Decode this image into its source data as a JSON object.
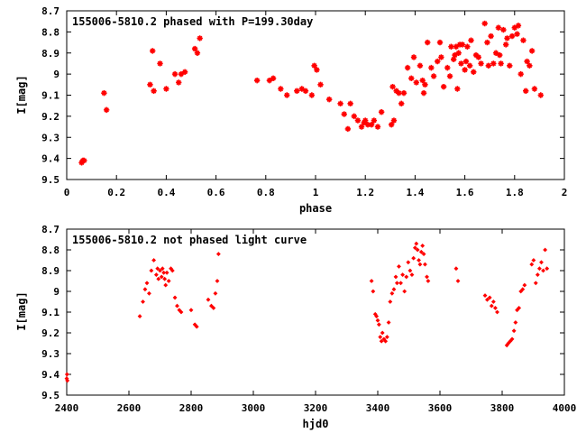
{
  "chart_data": [
    {
      "type": "scatter",
      "title": "155006-5810.2 phased with P=199.30day",
      "xlabel": "phase",
      "ylabel": "I[mag]",
      "xlim": [
        0,
        2
      ],
      "ylim": [
        9.5,
        8.7
      ],
      "y_inverted": true,
      "x_ticks": [
        "0",
        "0.2",
        "0.4",
        "0.6",
        "0.8",
        "1",
        "1.2",
        "1.4",
        "1.6",
        "1.8",
        "2"
      ],
      "y_ticks": [
        "8.7",
        "8.8",
        "8.9",
        "9",
        "9.1",
        "9.2",
        "9.3",
        "9.4",
        "9.5"
      ],
      "grid": false,
      "marker_color": "#ff0000",
      "series": [
        {
          "x": [
            0.06,
            0.065,
            0.07,
            0.15,
            0.16,
            0.335,
            0.345,
            0.35,
            0.375,
            0.4,
            0.435,
            0.45,
            0.46,
            0.475,
            0.515,
            0.525,
            0.535,
            0.765,
            0.815,
            0.83,
            0.86,
            0.885,
            0.925,
            0.945,
            0.96,
            0.985,
            0.995,
            1.005,
            1.02,
            1.055,
            1.1,
            1.115,
            1.13,
            1.14,
            1.155,
            1.17,
            1.185,
            1.195,
            1.2,
            1.21,
            1.225,
            1.235,
            1.25,
            1.265,
            1.305,
            1.31,
            1.315,
            1.325,
            1.335,
            1.345,
            1.355,
            1.37,
            1.385,
            1.395,
            1.405,
            1.42,
            1.43,
            1.435,
            1.44,
            1.45,
            1.465,
            1.475,
            1.49,
            1.5,
            1.505,
            1.515,
            1.53,
            1.54,
            1.545,
            1.555,
            1.56,
            1.565,
            1.57,
            1.575,
            1.58,
            1.585,
            1.59,
            1.6,
            1.605,
            1.61,
            1.62,
            1.625,
            1.635,
            1.645,
            1.655,
            1.665,
            1.68,
            1.69,
            1.695,
            1.705,
            1.715,
            1.725,
            1.735,
            1.74,
            1.745,
            1.755,
            1.765,
            1.77,
            1.78,
            1.79,
            1.8,
            1.81,
            1.815,
            1.825,
            1.835,
            1.845,
            1.85,
            1.86,
            1.87,
            1.88,
            1.905
          ],
          "y": [
            9.42,
            9.41,
            9.41,
            9.09,
            9.17,
            9.05,
            8.89,
            9.08,
            8.95,
            9.07,
            9.0,
            9.04,
            9.0,
            8.99,
            8.88,
            8.9,
            8.83,
            9.03,
            9.03,
            9.02,
            9.07,
            9.1,
            9.08,
            9.07,
            9.08,
            9.1,
            8.96,
            8.98,
            9.05,
            9.12,
            9.14,
            9.19,
            9.26,
            9.14,
            9.2,
            9.22,
            9.25,
            9.23,
            9.22,
            9.24,
            9.24,
            9.22,
            9.25,
            9.18,
            9.24,
            9.06,
            9.22,
            9.08,
            9.09,
            9.14,
            9.09,
            8.97,
            9.02,
            8.92,
            9.04,
            8.96,
            9.03,
            9.09,
            9.05,
            8.85,
            8.97,
            9.01,
            8.94,
            8.85,
            8.92,
            9.06,
            8.97,
            9.01,
            8.87,
            8.93,
            8.91,
            8.87,
            9.07,
            8.9,
            8.86,
            8.95,
            8.86,
            8.98,
            8.94,
            8.87,
            8.96,
            8.84,
            8.99,
            8.91,
            8.92,
            8.95,
            8.76,
            8.85,
            8.96,
            8.82,
            8.95,
            8.9,
            8.78,
            8.91,
            8.95,
            8.79,
            8.86,
            8.83,
            8.96,
            8.82,
            8.78,
            8.81,
            8.77,
            9.0,
            8.84,
            9.08,
            8.94,
            8.96,
            8.89,
            9.07,
            9.1
          ]
        }
      ]
    },
    {
      "type": "scatter",
      "title": "155006-5810.2 not phased light curve",
      "xlabel": "hjd0",
      "ylabel": "I[mag]",
      "xlim": [
        2400,
        4000
      ],
      "ylim": [
        9.5,
        8.7
      ],
      "y_inverted": true,
      "x_ticks": [
        "2400",
        "2600",
        "2800",
        "3000",
        "3200",
        "3400",
        "3600",
        "3800",
        "4000"
      ],
      "y_ticks": [
        "8.7",
        "8.8",
        "8.9",
        "9",
        "9.1",
        "9.2",
        "9.3",
        "9.4",
        "9.5"
      ],
      "grid": false,
      "marker_color": "#ff0000",
      "series": [
        {
          "x": [
            2400,
            2401,
            2402,
            2635,
            2645,
            2652,
            2658,
            2665,
            2672,
            2680,
            2688,
            2692,
            2695,
            2700,
            2705,
            2708,
            2712,
            2715,
            2718,
            2722,
            2728,
            2735,
            2740,
            2748,
            2755,
            2762,
            2768,
            2800,
            2812,
            2818,
            2855,
            2865,
            2872,
            2878,
            2884,
            2888,
            3380,
            3385,
            3392,
            3396,
            3400,
            3404,
            3408,
            3412,
            3415,
            3420,
            3425,
            3430,
            3435,
            3440,
            3446,
            3452,
            3458,
            3462,
            3468,
            3474,
            3480,
            3486,
            3492,
            3498,
            3504,
            3510,
            3515,
            3520,
            3524,
            3528,
            3532,
            3536,
            3540,
            3544,
            3548,
            3552,
            3558,
            3562,
            3652,
            3658,
            3745,
            3752,
            3760,
            3766,
            3772,
            3778,
            3784,
            3815,
            3820,
            3826,
            3832,
            3838,
            3843,
            3848,
            3854,
            3860,
            3866,
            3872,
            3895,
            3901,
            3908,
            3914,
            3920,
            3926,
            3932,
            3938,
            3944
          ],
          "y": [
            9.42,
            9.4,
            9.43,
            9.12,
            9.05,
            8.99,
            8.96,
            9.01,
            8.9,
            8.85,
            8.92,
            8.89,
            8.94,
            8.9,
            8.93,
            8.89,
            8.91,
            8.94,
            8.97,
            8.91,
            8.95,
            8.89,
            8.9,
            9.03,
            9.07,
            9.09,
            9.1,
            9.09,
            9.16,
            9.17,
            9.04,
            9.07,
            9.08,
            9.01,
            8.95,
            8.82,
            8.95,
            9.0,
            9.11,
            9.12,
            9.14,
            9.16,
            9.22,
            9.24,
            9.2,
            9.23,
            9.24,
            9.22,
            9.15,
            9.05,
            9.01,
            8.99,
            8.93,
            8.96,
            8.88,
            8.96,
            8.92,
            9.0,
            8.93,
            8.86,
            8.9,
            8.92,
            8.84,
            8.79,
            8.77,
            8.8,
            8.85,
            8.87,
            8.81,
            8.78,
            8.82,
            8.87,
            8.93,
            8.95,
            8.89,
            8.95,
            9.02,
            9.04,
            9.03,
            9.07,
            9.05,
            9.08,
            9.1,
            9.26,
            9.25,
            9.24,
            9.23,
            9.19,
            9.15,
            9.09,
            9.08,
            9.0,
            8.99,
            8.97,
            8.87,
            8.85,
            8.96,
            8.92,
            8.89,
            8.86,
            8.9,
            8.8,
            8.89
          ]
        }
      ]
    }
  ]
}
